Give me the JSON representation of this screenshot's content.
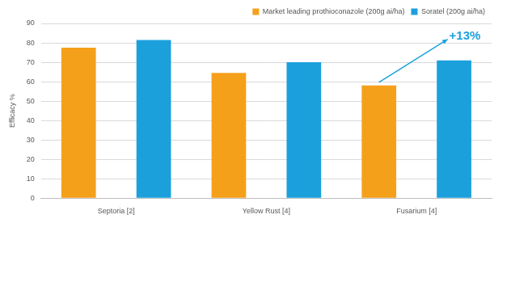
{
  "chart_data": {
    "type": "bar",
    "y_label": "Efficacy %",
    "categories": [
      "Septoria [2]",
      "Yellow Rust [4]",
      "Fusarium [4]"
    ],
    "series": [
      {
        "name": "Market leading prothioconazole (200g ai/ha)",
        "color": "#f5a01a",
        "values": [
          77.5,
          64.5,
          58
        ]
      },
      {
        "name": "Soratel (200g ai/ha)",
        "color": "#1ba0dc",
        "values": [
          81.5,
          70,
          71
        ]
      }
    ],
    "ylim": [
      0,
      90
    ],
    "yticks": [
      0,
      10,
      20,
      30,
      40,
      50,
      60,
      70,
      80,
      90
    ],
    "grid": true,
    "legend": "top-right",
    "annotations": [
      {
        "text": "+13%",
        "category": "Fusarium [4]"
      }
    ]
  }
}
